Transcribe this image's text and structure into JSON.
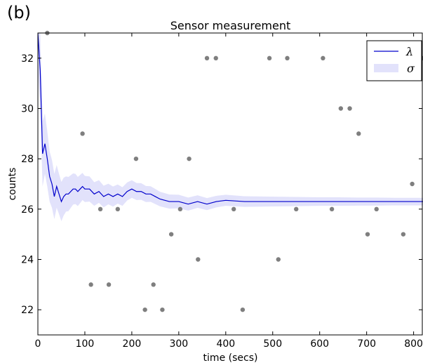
{
  "panel_label": "(b)",
  "chart_data": {
    "type": "scatter",
    "title": "Sensor measurement",
    "xlabel": "time (secs)",
    "ylabel": "counts",
    "xlim": [
      0,
      820
    ],
    "ylim": [
      21,
      33
    ],
    "xticks": [
      0,
      100,
      200,
      300,
      400,
      500,
      600,
      700,
      800
    ],
    "yticks": [
      22,
      24,
      26,
      28,
      30,
      32
    ],
    "grid": false,
    "legend_position": "top-right",
    "colors": {
      "lambda_line": "#0000cc",
      "sigma_band": "#e2e2fb",
      "points": "#7f7f7f"
    },
    "series": [
      {
        "name": "λ",
        "kind": "line",
        "x": [
          0,
          5,
          10,
          15,
          20,
          25,
          30,
          35,
          40,
          45,
          50,
          55,
          60,
          65,
          70,
          75,
          80,
          85,
          90,
          95,
          100,
          110,
          120,
          130,
          140,
          150,
          160,
          170,
          180,
          190,
          200,
          210,
          220,
          230,
          240,
          250,
          260,
          280,
          300,
          320,
          340,
          360,
          380,
          400,
          440,
          480,
          520,
          560,
          600,
          640,
          680,
          720,
          760,
          800,
          820
        ],
        "y": [
          33.0,
          31.5,
          28.2,
          28.6,
          28.0,
          27.3,
          27.0,
          26.5,
          26.9,
          26.6,
          26.3,
          26.5,
          26.6,
          26.6,
          26.7,
          26.8,
          26.8,
          26.7,
          26.8,
          26.9,
          26.8,
          26.8,
          26.6,
          26.7,
          26.5,
          26.6,
          26.5,
          26.6,
          26.5,
          26.7,
          26.8,
          26.7,
          26.7,
          26.6,
          26.6,
          26.5,
          26.4,
          26.3,
          26.3,
          26.2,
          26.3,
          26.2,
          26.3,
          26.35,
          26.3,
          26.3,
          26.3,
          26.3,
          26.3,
          26.3,
          26.3,
          26.3,
          26.3,
          26.3,
          26.3
        ]
      },
      {
        "name": "σ",
        "kind": "band",
        "x": [
          0,
          5,
          10,
          15,
          20,
          25,
          30,
          35,
          40,
          45,
          50,
          55,
          60,
          65,
          70,
          75,
          80,
          85,
          90,
          95,
          100,
          110,
          120,
          130,
          140,
          150,
          160,
          170,
          180,
          190,
          200,
          210,
          220,
          230,
          240,
          250,
          260,
          280,
          300,
          320,
          340,
          360,
          380,
          400,
          440,
          480,
          520,
          560,
          600,
          640,
          680,
          720,
          760,
          800,
          820
        ],
        "halfwidth": [
          1.5,
          1.5,
          1.3,
          1.2,
          1.1,
          1.0,
          0.95,
          0.9,
          0.85,
          0.8,
          0.78,
          0.75,
          0.7,
          0.68,
          0.65,
          0.62,
          0.6,
          0.58,
          0.56,
          0.54,
          0.52,
          0.5,
          0.47,
          0.45,
          0.43,
          0.41,
          0.4,
          0.38,
          0.37,
          0.36,
          0.35,
          0.34,
          0.33,
          0.32,
          0.31,
          0.3,
          0.29,
          0.28,
          0.27,
          0.26,
          0.25,
          0.24,
          0.23,
          0.22,
          0.21,
          0.2,
          0.19,
          0.18,
          0.17,
          0.17,
          0.16,
          0.16,
          0.15,
          0.15,
          0.15
        ]
      },
      {
        "kind": "points",
        "x": [
          20,
          95,
          113,
          133,
          151,
          170,
          209,
          228,
          246,
          265,
          284,
          303,
          322,
          341,
          360,
          379,
          417,
          436,
          493,
          512,
          531,
          550,
          607,
          626,
          645,
          664,
          683,
          702,
          721,
          778,
          797,
          818
        ],
        "y": [
          33,
          29,
          23,
          26,
          23,
          26,
          28,
          22,
          23,
          22,
          25,
          26,
          28,
          24,
          32,
          32,
          26,
          22,
          32,
          24,
          32,
          26,
          32,
          26,
          30,
          30,
          29,
          25,
          26,
          25,
          27,
          32
        ]
      }
    ]
  }
}
